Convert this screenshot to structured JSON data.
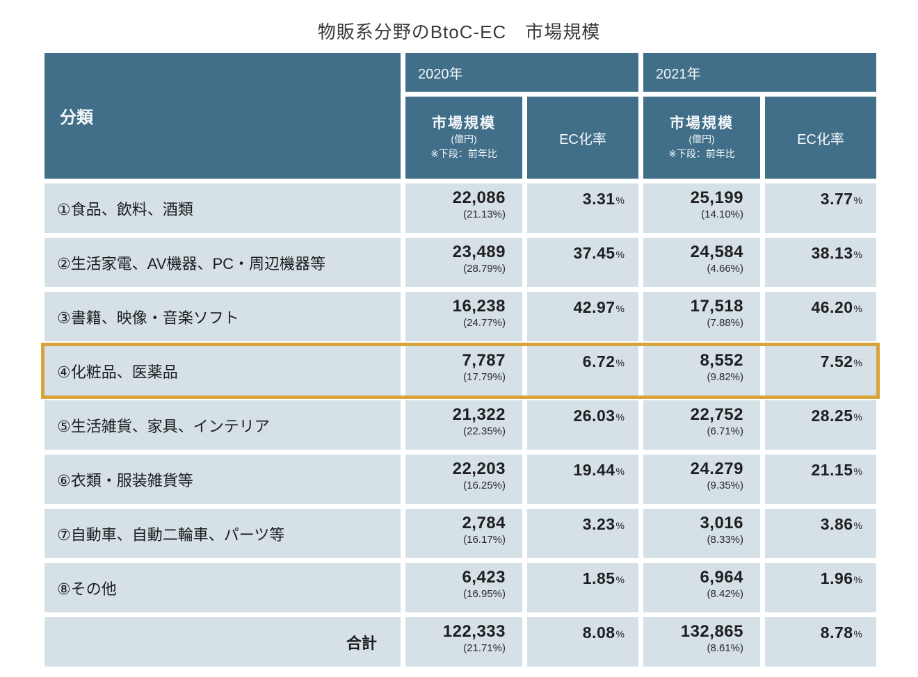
{
  "title": "物販系分野のBtoC-EC　市場規模",
  "colors": {
    "header_bg": "#416e88",
    "row_bg": "#d5e0e7",
    "highlight_border": "#d9a43c",
    "background": "#ffffff",
    "text": "#1f1f1f"
  },
  "table": {
    "percent_sign": "%",
    "header": {
      "category": "分類",
      "year_2020": "2020年",
      "year_2021": "2021年",
      "scale_label": "市場規模",
      "scale_unit": "(億円)",
      "scale_note": "※下段：前年比",
      "ec_label": "EC化率"
    },
    "rows": [
      {
        "label": "①食品、飲料、酒類",
        "s2020": "22,086",
        "g2020": "(21.13%)",
        "ec2020": "3.31",
        "s2021": "25,199",
        "g2021": "(14.10%)",
        "ec2021": "3.77"
      },
      {
        "label": "②生活家電、AV機器、PC・周辺機器等",
        "s2020": "23,489",
        "g2020": "(28.79%)",
        "ec2020": "37.45",
        "s2021": "24,584",
        "g2021": "(4.66%)",
        "ec2021": "38.13"
      },
      {
        "label": "③書籍、映像・音楽ソフト",
        "s2020": "16,238",
        "g2020": "(24.77%)",
        "ec2020": "42.97",
        "s2021": "17,518",
        "g2021": "(7.88%)",
        "ec2021": "46.20"
      },
      {
        "label": "④化粧品、医薬品",
        "s2020": "7,787",
        "g2020": "(17.79%)",
        "ec2020": "6.72",
        "s2021": "8,552",
        "g2021": "(9.82%)",
        "ec2021": "7.52"
      },
      {
        "label": "⑤生活雑貨、家具、インテリア",
        "s2020": "21,322",
        "g2020": "(22.35%)",
        "ec2020": "26.03",
        "s2021": "22,752",
        "g2021": "(6.71%)",
        "ec2021": "28.25"
      },
      {
        "label": "⑥衣類・服装雑貨等",
        "s2020": "22,203",
        "g2020": "(16.25%)",
        "ec2020": "19.44",
        "s2021": "24.279",
        "g2021": "(9.35%)",
        "ec2021": "21.15"
      },
      {
        "label": "⑦自動車、自動二輪車、パーツ等",
        "s2020": "2,784",
        "g2020": "(16.17%)",
        "ec2020": "3.23",
        "s2021": "3,016",
        "g2021": "(8.33%)",
        "ec2021": "3.86"
      },
      {
        "label": "⑧その他",
        "s2020": "6,423",
        "g2020": "(16.95%)",
        "ec2020": "1.85",
        "s2021": "6,964",
        "g2021": "(8.42%)",
        "ec2021": "1.96"
      }
    ],
    "total": {
      "label": "合計",
      "s2020": "122,333",
      "g2020": "(21.71%)",
      "ec2020": "8.08",
      "s2021": "132,865",
      "g2021": "(8.61%)",
      "ec2021": "8.78"
    }
  },
  "chart_data": {
    "type": "table",
    "title": "物販系分野のBtoC-EC　市場規模",
    "columns": [
      "分類",
      "2020年 市場規模(億円)",
      "2020年 前年比",
      "2020年 EC化率",
      "2021年 市場規模(億円)",
      "2021年 前年比",
      "2021年 EC化率"
    ],
    "rows": [
      [
        "①食品、飲料、酒類",
        22086,
        "21.13%",
        "3.31%",
        25199,
        "14.10%",
        "3.77%"
      ],
      [
        "②生活家電、AV機器、PC・周辺機器等",
        23489,
        "28.79%",
        "37.45%",
        24584,
        "4.66%",
        "38.13%"
      ],
      [
        "③書籍、映像・音楽ソフト",
        16238,
        "24.77%",
        "42.97%",
        17518,
        "7.88%",
        "46.20%"
      ],
      [
        "④化粧品、医薬品",
        7787,
        "17.79%",
        "6.72%",
        8552,
        "9.82%",
        "7.52%"
      ],
      [
        "⑤生活雑貨、家具、インテリア",
        21322,
        "22.35%",
        "26.03%",
        22752,
        "6.71%",
        "28.25%"
      ],
      [
        "⑥衣類・服装雑貨等",
        22203,
        "16.25%",
        "19.44%",
        "24.279",
        "9.35%",
        "21.15%"
      ],
      [
        "⑦自動車、自動二輪車、パーツ等",
        2784,
        "16.17%",
        "3.23%",
        3016,
        "8.33%",
        "3.86%"
      ],
      [
        "⑧その他",
        6423,
        "16.95%",
        "1.85%",
        6964,
        "8.42%",
        "1.96%"
      ],
      [
        "合計",
        122333,
        "21.71%",
        "8.08%",
        132865,
        "8.61%",
        "8.78%"
      ]
    ],
    "highlighted_row": "④化粧品、医薬品",
    "notes": "市場規模の下段は前年比。④化粧品、医薬品の行が金色の枠で強調表示されている。"
  }
}
